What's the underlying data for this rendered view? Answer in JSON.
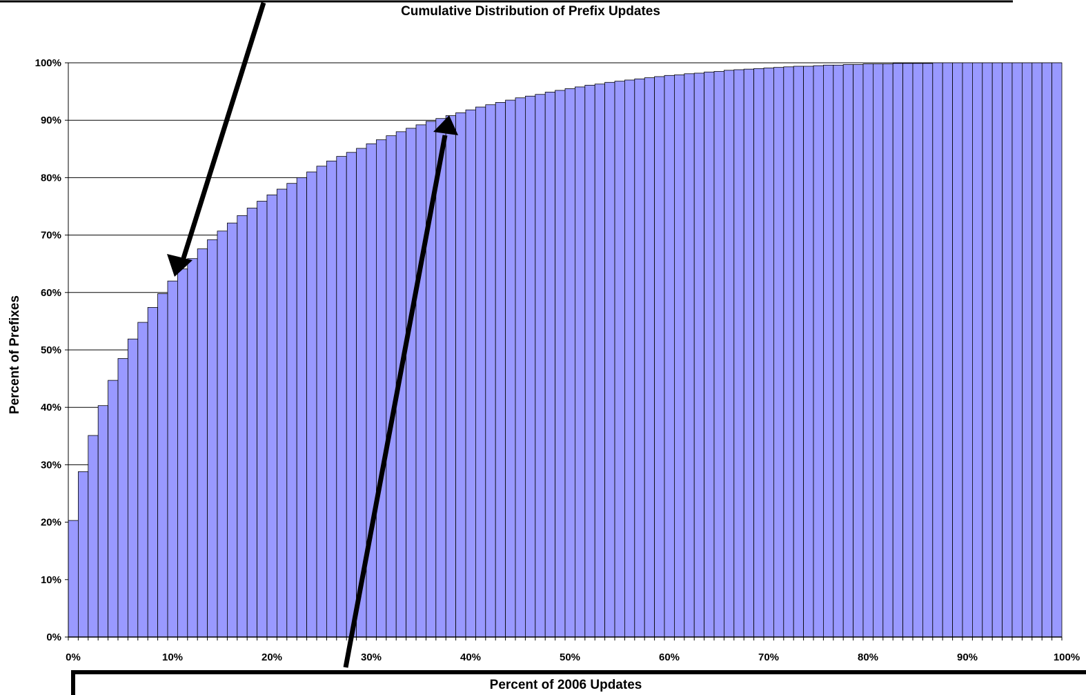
{
  "chart_data": {
    "type": "bar",
    "title": "Cumulative Distribution of Prefix Updates",
    "xlabel": "Percent of 2006 Updates",
    "ylabel": "Percent of Prefixes",
    "ylim": [
      0,
      100
    ],
    "xlim": [
      0,
      100
    ],
    "grid": true,
    "x_ticks": [
      "0%",
      "10%",
      "20%",
      "30%",
      "40%",
      "50%",
      "60%",
      "70%",
      "80%",
      "90%",
      "100%"
    ],
    "y_ticks": [
      "0%",
      "10%",
      "20%",
      "30%",
      "40%",
      "50%",
      "60%",
      "70%",
      "80%",
      "90%",
      "100%"
    ],
    "bar_color": "#9999ff",
    "values": [
      20.3,
      28.8,
      35.1,
      40.3,
      44.7,
      48.5,
      51.9,
      54.8,
      57.4,
      59.8,
      62.0,
      64.1,
      65.9,
      67.6,
      69.2,
      70.7,
      72.1,
      73.4,
      74.7,
      75.9,
      77.0,
      78.0,
      79.0,
      80.0,
      81.0,
      82.0,
      82.9,
      83.7,
      84.4,
      85.1,
      85.9,
      86.6,
      87.3,
      88.0,
      88.6,
      89.2,
      89.8,
      90.3,
      90.8,
      91.3,
      91.8,
      92.3,
      92.7,
      93.1,
      93.5,
      93.9,
      94.2,
      94.5,
      94.9,
      95.2,
      95.5,
      95.8,
      96.1,
      96.3,
      96.6,
      96.8,
      97.0,
      97.2,
      97.4,
      97.6,
      97.8,
      97.9,
      98.1,
      98.2,
      98.4,
      98.5,
      98.7,
      98.8,
      98.9,
      99.0,
      99.1,
      99.2,
      99.3,
      99.4,
      99.4,
      99.5,
      99.6,
      99.6,
      99.7,
      99.7,
      99.8,
      99.8,
      99.8,
      99.9,
      99.9,
      99.9,
      99.9,
      100,
      100,
      100,
      100,
      100,
      100,
      100,
      100,
      100,
      100,
      100,
      100,
      100
    ]
  }
}
